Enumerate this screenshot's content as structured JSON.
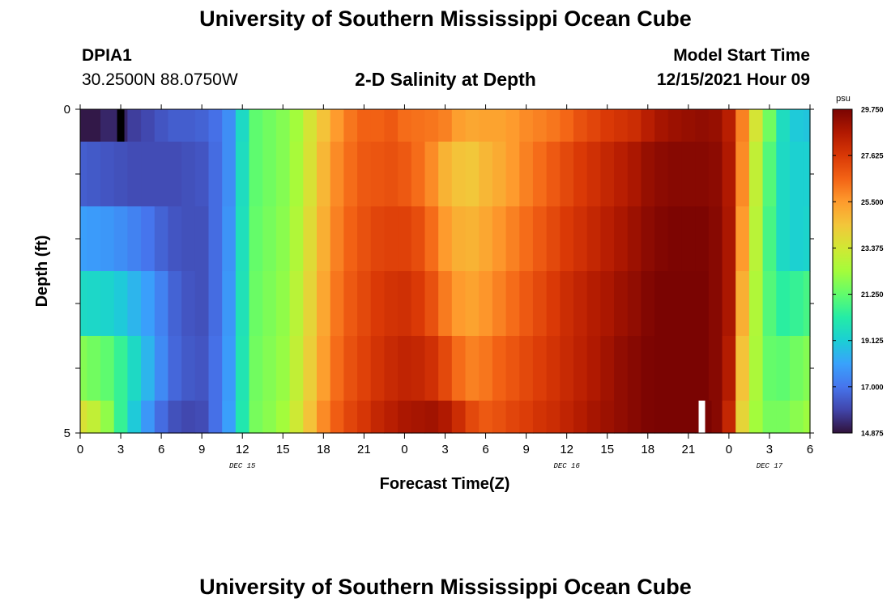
{
  "header": {
    "title": "University of Southern Mississippi Ocean Cube",
    "station_id": "DPIA1",
    "station_coords": "30.2500N  88.0750W",
    "chart_title": "2-D Salinity at Depth",
    "model_label": "Model Start Time",
    "model_time": "12/15/2021 Hour 09"
  },
  "footer": {
    "title": "University of Southern Mississippi Ocean Cube"
  },
  "chart_data": {
    "type": "heatmap",
    "title": "2-D Salinity at Depth",
    "xlabel": "Forecast Time(Z)",
    "ylabel": "Depth (ft)",
    "x_tick_labels": [
      "0",
      "3",
      "6",
      "9",
      "12",
      "15",
      "18",
      "21",
      "0",
      "3",
      "6",
      "9",
      "12",
      "15",
      "18",
      "21",
      "0",
      "3",
      "6"
    ],
    "x_hours": [
      0,
      1,
      2,
      3,
      4,
      5,
      6,
      7,
      8,
      9,
      10,
      11,
      12,
      13,
      14,
      15,
      16,
      17,
      18,
      19,
      20,
      21,
      22,
      23,
      24,
      25,
      26,
      27,
      28,
      29,
      30,
      31,
      32,
      33,
      34,
      35,
      36,
      37,
      38,
      39,
      40,
      41,
      42,
      43,
      44,
      45,
      46,
      47,
      48,
      49,
      50,
      51,
      52,
      53,
      54
    ],
    "date_labels": [
      {
        "label": "DEC 15",
        "hour": 12
      },
      {
        "label": "DEC 16",
        "hour": 36
      },
      {
        "label": "DEC 17",
        "hour": 51
      }
    ],
    "y_tick_labels": [
      "0",
      "5"
    ],
    "ylim": [
      0,
      5
    ],
    "depth_rows": [
      0.25,
      1.25,
      2.25,
      3.25,
      4.25
    ],
    "depths": [
      0,
      1,
      2,
      3,
      4,
      5
    ],
    "salinity": [
      [
        15.0,
        15.0,
        15.3,
        15.3,
        15.8,
        16.0,
        16.3,
        16.5,
        16.5,
        16.6,
        16.9,
        17.6,
        19.5,
        21.2,
        21.5,
        21.8,
        22.3,
        23.5,
        24.5,
        25.5,
        26.2,
        26.6,
        26.6,
        26.8,
        26.4,
        26.3,
        26.2,
        26.0,
        25.4,
        25.2,
        25.3,
        25.3,
        25.5,
        25.8,
        26.0,
        26.2,
        26.5,
        27.0,
        27.3,
        27.6,
        27.8,
        28.0,
        28.5,
        28.9,
        29.1,
        29.2,
        29.3,
        29.2,
        28.5,
        26.0,
        23.5,
        21.5,
        19.6,
        19.0,
        18.9
      ],
      [
        16.5,
        16.4,
        16.3,
        16.2,
        16.1,
        16.1,
        16.1,
        16.1,
        16.2,
        16.3,
        16.8,
        17.6,
        19.6,
        21.2,
        21.5,
        21.8,
        22.4,
        23.6,
        24.8,
        25.8,
        26.4,
        26.8,
        26.9,
        27.0,
        26.8,
        26.4,
        25.8,
        24.9,
        24.5,
        24.4,
        24.8,
        25.1,
        25.5,
        26.0,
        26.4,
        26.8,
        27.2,
        27.6,
        27.9,
        28.2,
        28.5,
        28.8,
        29.2,
        29.4,
        29.5,
        29.5,
        29.5,
        29.4,
        28.7,
        25.8,
        23.0,
        21.0,
        19.5,
        19.2,
        19.2
      ],
      [
        18.0,
        17.9,
        17.8,
        17.6,
        17.3,
        17.0,
        16.6,
        16.3,
        16.2,
        16.2,
        16.8,
        17.7,
        19.7,
        21.3,
        21.6,
        21.9,
        22.6,
        23.8,
        25.0,
        26.0,
        26.6,
        27.0,
        27.3,
        27.4,
        27.4,
        27.1,
        26.4,
        25.5,
        25.0,
        24.9,
        25.2,
        25.6,
        26.0,
        26.4,
        26.8,
        27.2,
        27.6,
        27.9,
        28.2,
        28.5,
        28.8,
        29.1,
        29.4,
        29.6,
        29.7,
        29.7,
        29.7,
        29.5,
        28.8,
        25.5,
        22.8,
        20.8,
        19.5,
        19.2,
        19.3
      ],
      [
        19.5,
        19.4,
        19.3,
        19.0,
        18.5,
        18.0,
        17.3,
        16.6,
        16.3,
        16.2,
        16.8,
        17.8,
        19.8,
        21.4,
        21.7,
        22.0,
        22.8,
        24.0,
        25.2,
        26.2,
        26.8,
        27.2,
        27.6,
        27.8,
        27.9,
        27.6,
        27.0,
        26.1,
        25.5,
        25.3,
        25.6,
        26.0,
        26.4,
        26.8,
        27.2,
        27.6,
        28.0,
        28.3,
        28.6,
        28.8,
        29.1,
        29.3,
        29.6,
        29.8,
        29.8,
        29.8,
        29.8,
        29.5,
        28.8,
        25.0,
        22.6,
        21.0,
        20.3,
        20.5,
        20.8
      ],
      [
        21.8,
        21.5,
        21.2,
        20.5,
        19.5,
        18.5,
        17.5,
        16.7,
        16.4,
        16.3,
        16.9,
        17.9,
        19.9,
        21.5,
        21.8,
        22.1,
        23.0,
        24.2,
        25.4,
        26.4,
        27.0,
        27.4,
        27.8,
        28.1,
        28.3,
        28.2,
        27.9,
        27.2,
        26.4,
        26.0,
        26.2,
        26.6,
        26.9,
        27.2,
        27.5,
        27.8,
        28.1,
        28.4,
        28.7,
        29.0,
        29.3,
        29.5,
        29.7,
        29.8,
        29.8,
        29.8,
        29.8,
        29.5,
        28.6,
        24.5,
        22.5,
        21.3,
        21.2,
        21.5,
        21.8
      ],
      [
        23.6,
        23.0,
        22.0,
        20.5,
        19.0,
        17.8,
        16.8,
        16.2,
        16.0,
        16.1,
        16.9,
        18.0,
        20.0,
        21.6,
        21.9,
        22.3,
        23.3,
        24.5,
        25.8,
        26.7,
        27.3,
        27.7,
        28.2,
        28.5,
        28.8,
        28.9,
        29.0,
        28.7,
        28.0,
        27.2,
        26.8,
        27.0,
        27.3,
        27.5,
        27.8,
        28.0,
        28.3,
        28.6,
        28.9,
        29.1,
        29.3,
        29.5,
        29.7,
        29.8,
        29.9,
        29.9,
        29.9,
        29.5,
        28.2,
        24.0,
        22.3,
        21.6,
        21.6,
        21.9,
        22.2
      ]
    ],
    "annotations": [
      {
        "type": "black-bar",
        "depth_row": 0,
        "hour": 3
      },
      {
        "type": "white-bar",
        "depth_row": 5,
        "hour": 46
      }
    ],
    "colorbar": {
      "unit": "psu",
      "min": 14.875,
      "max": 29.75,
      "ticks": [
        "29.750",
        "27.625",
        "25.500",
        "23.375",
        "21.250",
        "19.125",
        "17.000",
        "14.875"
      ],
      "colors": [
        "#30123b",
        "#4145ab",
        "#4675ed",
        "#39a2fc",
        "#1bcfd4",
        "#24eca6",
        "#61fc6c",
        "#a4fc3b",
        "#d1e834",
        "#f3c63a",
        "#fe9b2d",
        "#f36315",
        "#d93806",
        "#b11901",
        "#7a0402"
      ]
    }
  }
}
